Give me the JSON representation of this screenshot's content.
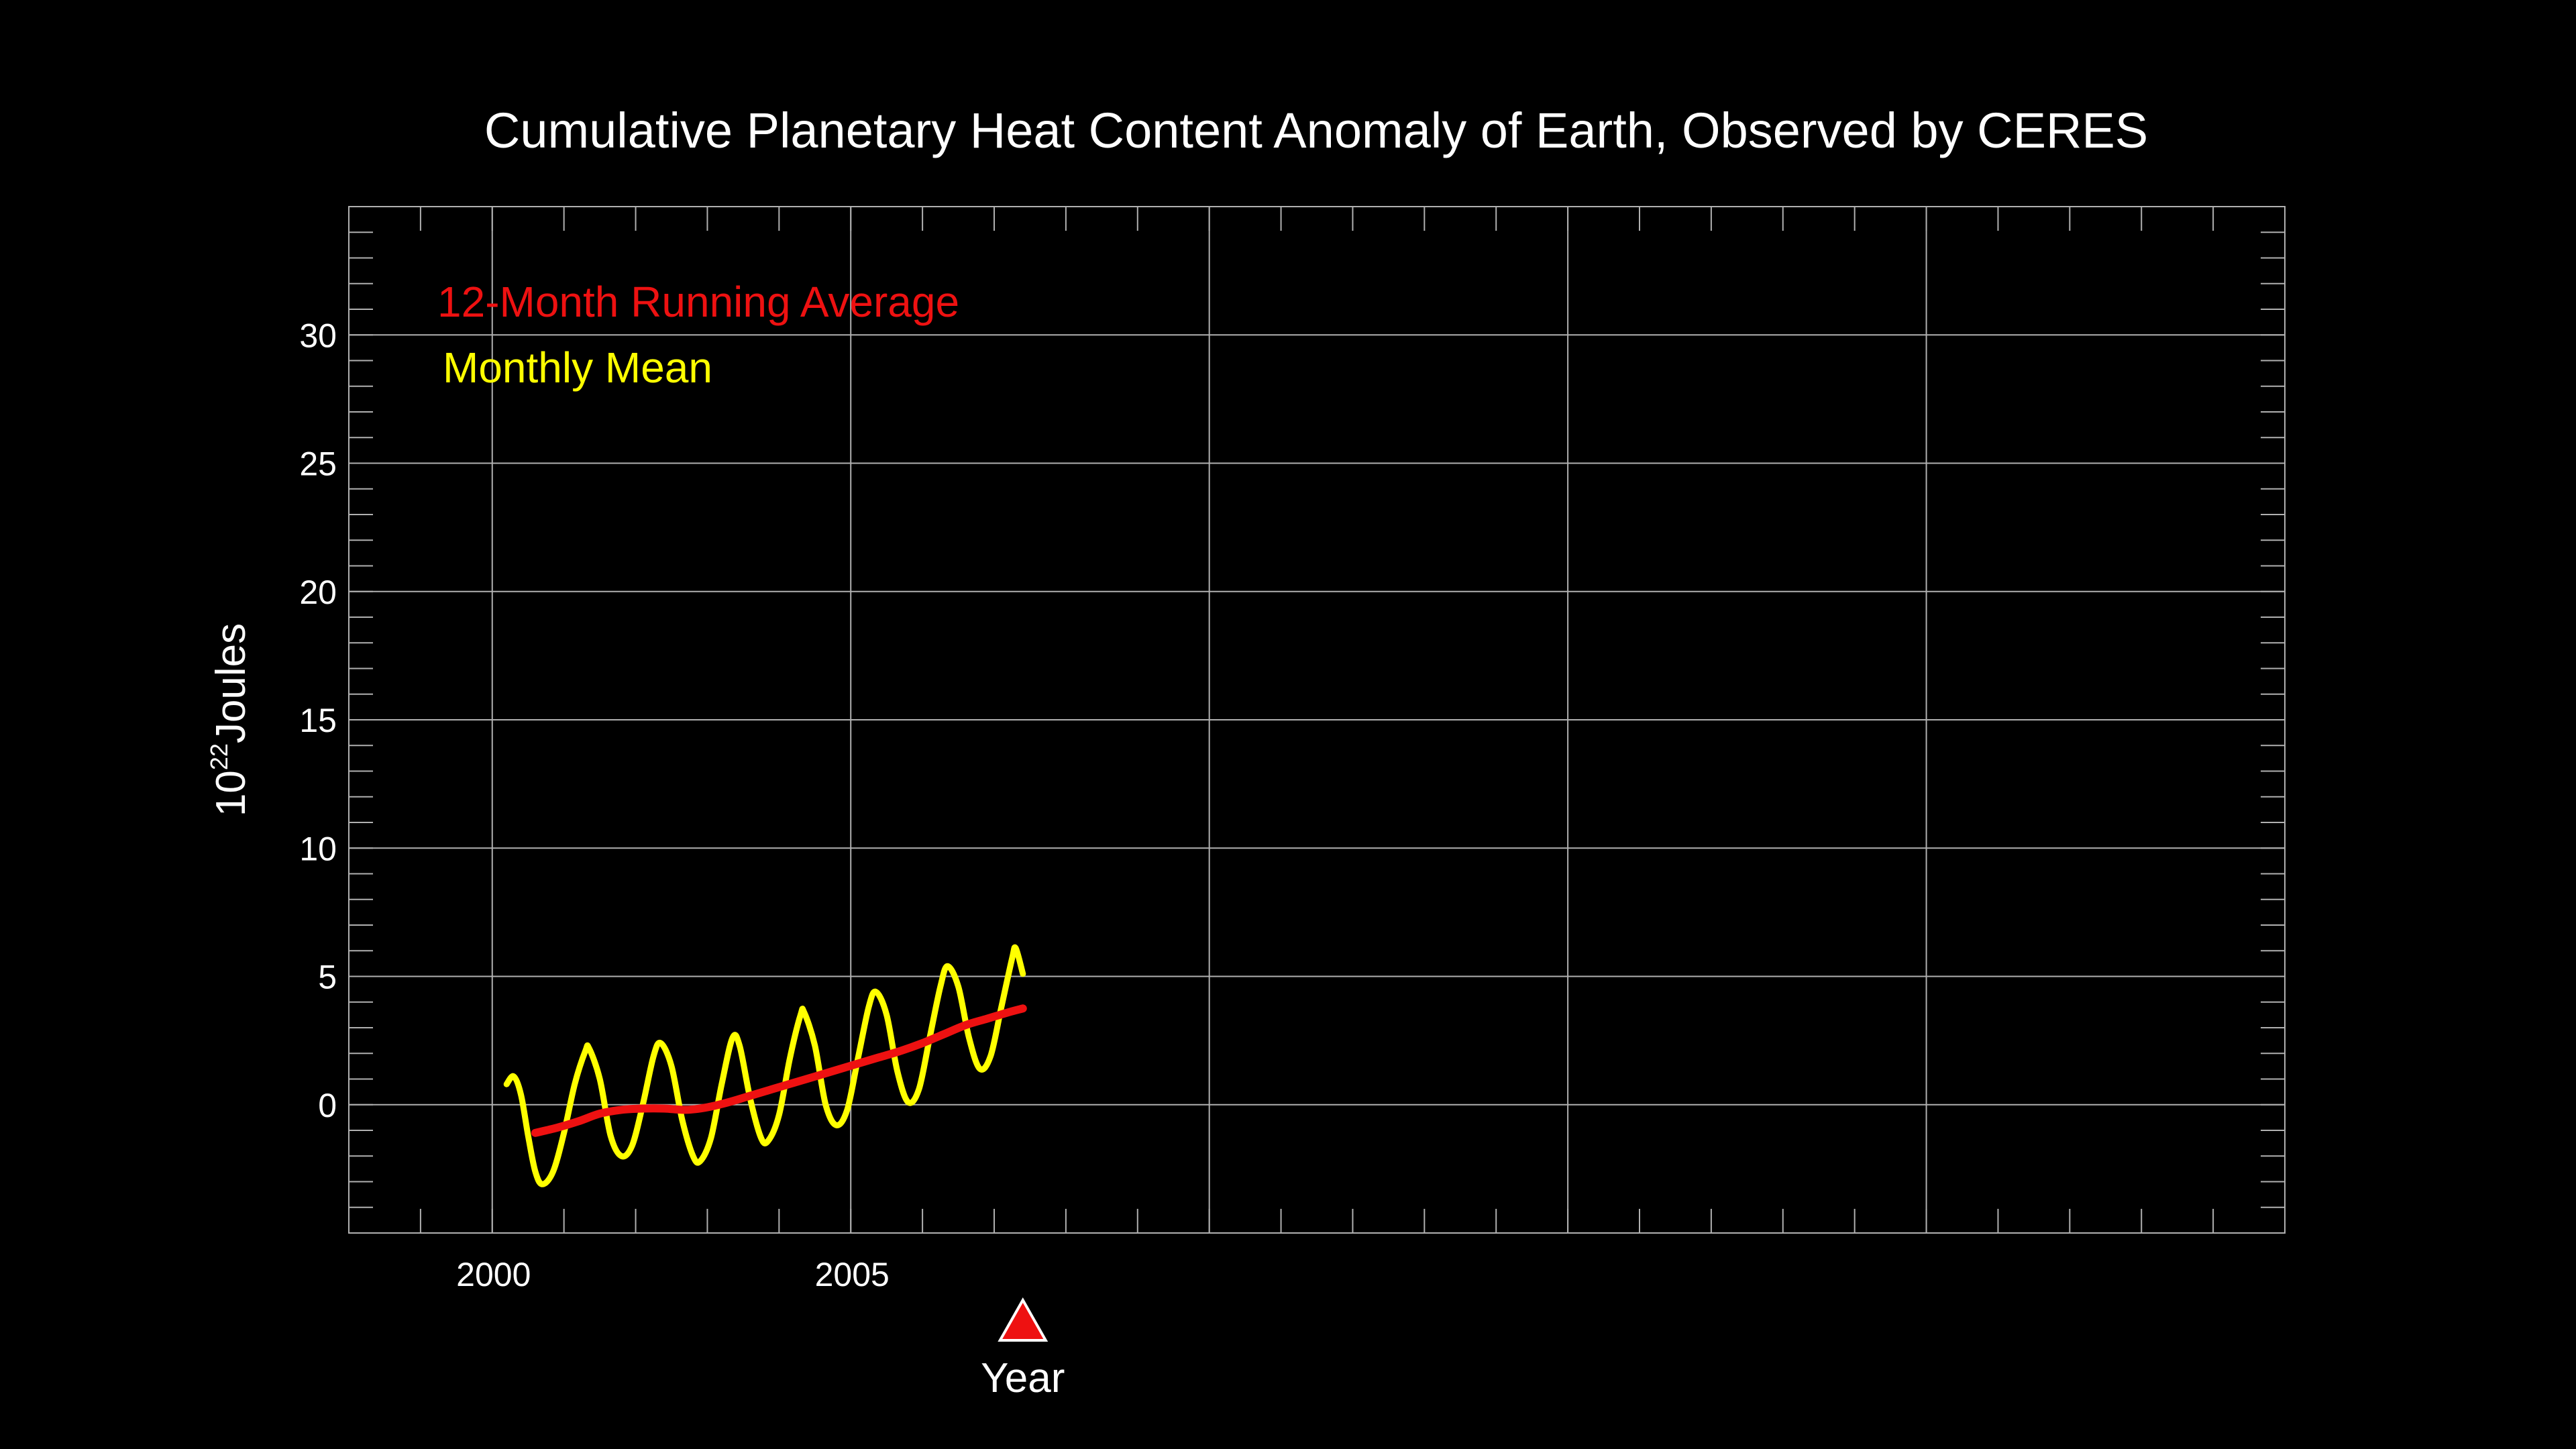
{
  "chart_data": {
    "type": "line",
    "title": "Cumulative Planetary Heat Content Anomaly of Earth, Observed by CERES",
    "xlabel": "Year",
    "ylabel": {
      "base": "10",
      "exponent": "22",
      "unit": "Joules"
    },
    "xlim": [
      1998,
      2025
    ],
    "ylim": [
      -5,
      35
    ],
    "x_ticks": [
      {
        "value": 2000,
        "label": "2000"
      },
      {
        "value": 2005,
        "label": "2005"
      }
    ],
    "x_gridlines": [
      2000,
      2005,
      2010,
      2015,
      2020
    ],
    "y_ticks": [
      {
        "value": 0,
        "label": "0"
      },
      {
        "value": 5,
        "label": "5"
      },
      {
        "value": 10,
        "label": "10"
      },
      {
        "value": 15,
        "label": "15"
      },
      {
        "value": 20,
        "label": "20"
      },
      {
        "value": 25,
        "label": "25"
      },
      {
        "value": 30,
        "label": "30"
      }
    ],
    "grid": true,
    "legend_position": "top-left",
    "current_year_marker": 2007.4,
    "colors": {
      "background": "#000000",
      "grid": "#b0b0b0",
      "text": "#ffffff",
      "running_average": "#ee1111",
      "monthly_mean": "#ffff00",
      "marker": "#ee1111"
    },
    "series": [
      {
        "name": "12-Month Running Average",
        "color": "#ee1111",
        "points": [
          [
            2000.6,
            -1.1
          ],
          [
            2000.9,
            -0.9
          ],
          [
            2001.2,
            -0.65
          ],
          [
            2001.5,
            -0.35
          ],
          [
            2001.8,
            -0.2
          ],
          [
            2002.1,
            -0.15
          ],
          [
            2002.4,
            -0.15
          ],
          [
            2002.7,
            -0.2
          ],
          [
            2003.0,
            -0.1
          ],
          [
            2003.3,
            0.1
          ],
          [
            2003.6,
            0.35
          ],
          [
            2003.9,
            0.6
          ],
          [
            2004.2,
            0.85
          ],
          [
            2004.5,
            1.1
          ],
          [
            2004.8,
            1.35
          ],
          [
            2005.1,
            1.6
          ],
          [
            2005.4,
            1.85
          ],
          [
            2005.7,
            2.1
          ],
          [
            2006.0,
            2.4
          ],
          [
            2006.3,
            2.75
          ],
          [
            2006.6,
            3.1
          ],
          [
            2006.9,
            3.35
          ],
          [
            2007.2,
            3.6
          ],
          [
            2007.4,
            3.75
          ]
        ]
      },
      {
        "name": "Monthly Mean",
        "color": "#ffff00",
        "points": [
          [
            2000.2,
            0.8
          ],
          [
            2000.3,
            1.1
          ],
          [
            2000.4,
            0.4
          ],
          [
            2000.5,
            -1.2
          ],
          [
            2000.6,
            -2.6
          ],
          [
            2000.7,
            -3.1
          ],
          [
            2000.85,
            -2.6
          ],
          [
            2001.0,
            -1.1
          ],
          [
            2001.15,
            0.8
          ],
          [
            2001.3,
            2.1
          ],
          [
            2001.35,
            2.2
          ],
          [
            2001.5,
            1.0
          ],
          [
            2001.65,
            -1.2
          ],
          [
            2001.8,
            -2.0
          ],
          [
            2001.95,
            -1.6
          ],
          [
            2002.1,
            0.0
          ],
          [
            2002.25,
            1.9
          ],
          [
            2002.35,
            2.4
          ],
          [
            2002.5,
            1.5
          ],
          [
            2002.65,
            -0.6
          ],
          [
            2002.8,
            -2.0
          ],
          [
            2002.9,
            -2.2
          ],
          [
            2003.05,
            -1.3
          ],
          [
            2003.2,
            0.8
          ],
          [
            2003.35,
            2.6
          ],
          [
            2003.45,
            2.3
          ],
          [
            2003.6,
            0.2
          ],
          [
            2003.75,
            -1.3
          ],
          [
            2003.85,
            -1.4
          ],
          [
            2004.0,
            -0.4
          ],
          [
            2004.15,
            1.8
          ],
          [
            2004.3,
            3.5
          ],
          [
            2004.35,
            3.6
          ],
          [
            2004.5,
            2.3
          ],
          [
            2004.65,
            0.0
          ],
          [
            2004.8,
            -0.8
          ],
          [
            2004.95,
            -0.2
          ],
          [
            2005.1,
            1.8
          ],
          [
            2005.25,
            3.8
          ],
          [
            2005.35,
            4.4
          ],
          [
            2005.5,
            3.5
          ],
          [
            2005.65,
            1.3
          ],
          [
            2005.8,
            0.1
          ],
          [
            2005.95,
            0.6
          ],
          [
            2006.1,
            2.6
          ],
          [
            2006.25,
            4.6
          ],
          [
            2006.35,
            5.4
          ],
          [
            2006.5,
            4.6
          ],
          [
            2006.65,
            2.6
          ],
          [
            2006.8,
            1.4
          ],
          [
            2006.95,
            1.9
          ],
          [
            2007.1,
            3.8
          ],
          [
            2007.25,
            5.7
          ],
          [
            2007.3,
            6.1
          ],
          [
            2007.4,
            5.1
          ]
        ]
      }
    ]
  }
}
